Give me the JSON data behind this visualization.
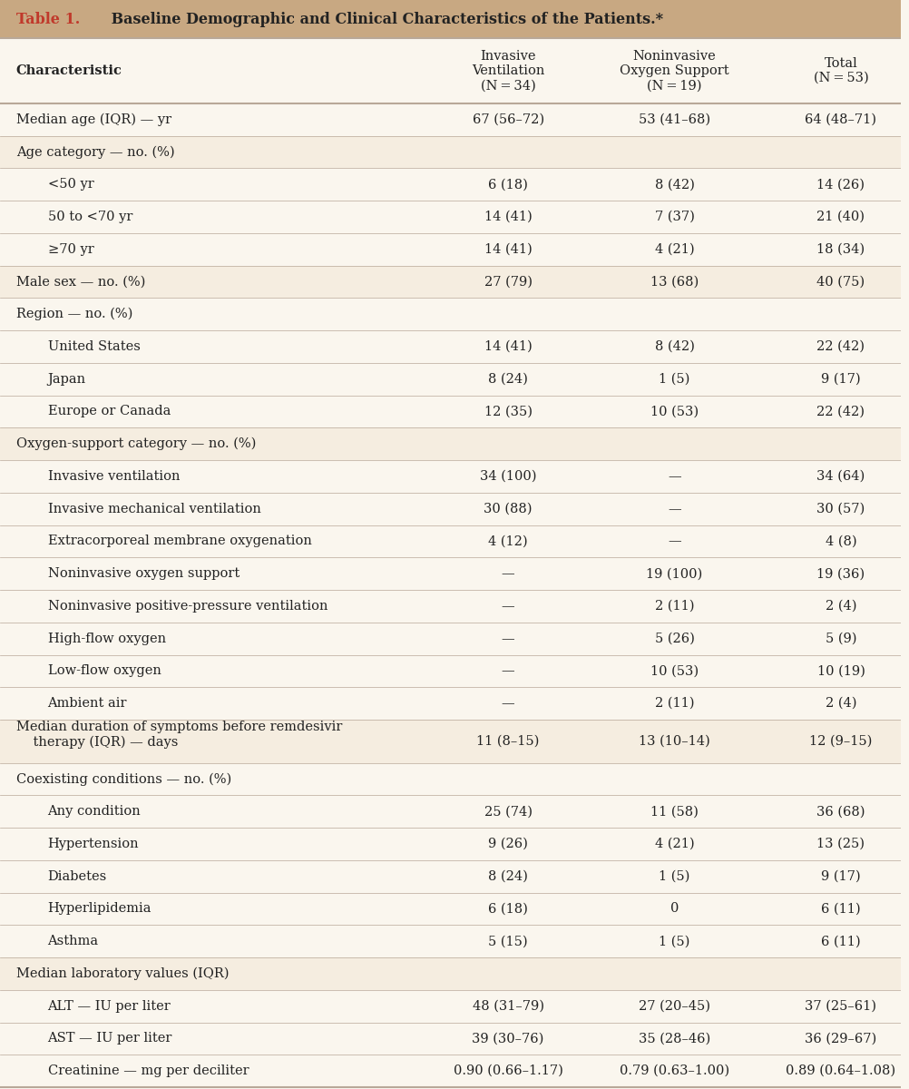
{
  "title_bold": "Table 1.",
  "title_rest": " Baseline Demographic and Clinical Characteristics of the Patients.*",
  "col_headers": [
    [
      "Characteristic",
      "",
      ""
    ],
    [
      "Invasive\nVentilation\n(N = 34)",
      "Noninvasive\nOxygen Support\n(N = 19)",
      "Total\n(N = 53)"
    ]
  ],
  "rows": [
    {
      "label": "Median age (IQR) — yr",
      "indent": 0,
      "values": [
        "67 (56–72)",
        "53 (41–68)",
        "64 (48–71)"
      ],
      "bold": false,
      "shaded": false
    },
    {
      "label": "Age category — no. (%)",
      "indent": 0,
      "values": [
        "",
        "",
        ""
      ],
      "bold": false,
      "shaded": true
    },
    {
      "label": "<50 yr",
      "indent": 1,
      "values": [
        "6 (18)",
        "8 (42)",
        "14 (26)"
      ],
      "bold": false,
      "shaded": false
    },
    {
      "label": "50 to <70 yr",
      "indent": 1,
      "values": [
        "14 (41)",
        "7 (37)",
        "21 (40)"
      ],
      "bold": false,
      "shaded": false
    },
    {
      "label": "≥70 yr",
      "indent": 1,
      "values": [
        "14 (41)",
        "4 (21)",
        "18 (34)"
      ],
      "bold": false,
      "shaded": false
    },
    {
      "label": "Male sex — no. (%)",
      "indent": 0,
      "values": [
        "27 (79)",
        "13 (68)",
        "40 (75)"
      ],
      "bold": false,
      "shaded": true
    },
    {
      "label": "Region — no. (%)",
      "indent": 0,
      "values": [
        "",
        "",
        ""
      ],
      "bold": false,
      "shaded": false
    },
    {
      "label": "United States",
      "indent": 1,
      "values": [
        "14 (41)",
        "8 (42)",
        "22 (42)"
      ],
      "bold": false,
      "shaded": false
    },
    {
      "label": "Japan",
      "indent": 1,
      "values": [
        "8 (24)",
        "1 (5)",
        "9 (17)"
      ],
      "bold": false,
      "shaded": false
    },
    {
      "label": "Europe or Canada",
      "indent": 1,
      "values": [
        "12 (35)",
        "10 (53)",
        "22 (42)"
      ],
      "bold": false,
      "shaded": false
    },
    {
      "label": "Oxygen-support category — no. (%)",
      "indent": 0,
      "values": [
        "",
        "",
        ""
      ],
      "bold": false,
      "shaded": true
    },
    {
      "label": "Invasive ventilation",
      "indent": 1,
      "values": [
        "34 (100)",
        "—",
        "34 (64)"
      ],
      "bold": false,
      "shaded": false
    },
    {
      "label": "Invasive mechanical ventilation",
      "indent": 1,
      "values": [
        "30 (88)",
        "—",
        "30 (57)"
      ],
      "bold": false,
      "shaded": false
    },
    {
      "label": "Extracorporeal membrane oxygenation",
      "indent": 1,
      "values": [
        "4 (12)",
        "—",
        "4 (8)"
      ],
      "bold": false,
      "shaded": false
    },
    {
      "label": "Noninvasive oxygen support",
      "indent": 1,
      "values": [
        "—",
        "19 (100)",
        "19 (36)"
      ],
      "bold": false,
      "shaded": false
    },
    {
      "label": "Noninvasive positive-pressure ventilation",
      "indent": 1,
      "values": [
        "—",
        "2 (11)",
        "2 (4)"
      ],
      "bold": false,
      "shaded": false
    },
    {
      "label": "High-flow oxygen",
      "indent": 1,
      "values": [
        "—",
        "5 (26)",
        "5 (9)"
      ],
      "bold": false,
      "shaded": false
    },
    {
      "label": "Low-flow oxygen",
      "indent": 1,
      "values": [
        "—",
        "10 (53)",
        "10 (19)"
      ],
      "bold": false,
      "shaded": false
    },
    {
      "label": "Ambient air",
      "indent": 1,
      "values": [
        "—",
        "2 (11)",
        "2 (4)"
      ],
      "bold": false,
      "shaded": false
    },
    {
      "label": "Median duration of symptoms before remdesivir\n    therapy (IQR) — days",
      "indent": 0,
      "values": [
        "11 (8–15)",
        "13 (10–14)",
        "12 (9–15)"
      ],
      "bold": false,
      "shaded": true,
      "multiline": true
    },
    {
      "label": "Coexisting conditions — no. (%)",
      "indent": 0,
      "values": [
        "",
        "",
        ""
      ],
      "bold": false,
      "shaded": false
    },
    {
      "label": "Any condition",
      "indent": 1,
      "values": [
        "25 (74)",
        "11 (58)",
        "36 (68)"
      ],
      "bold": false,
      "shaded": false
    },
    {
      "label": "Hypertension",
      "indent": 1,
      "values": [
        "9 (26)",
        "4 (21)",
        "13 (25)"
      ],
      "bold": false,
      "shaded": false
    },
    {
      "label": "Diabetes",
      "indent": 1,
      "values": [
        "8 (24)",
        "1 (5)",
        "9 (17)"
      ],
      "bold": false,
      "shaded": false
    },
    {
      "label": "Hyperlipidemia",
      "indent": 1,
      "values": [
        "6 (18)",
        "0",
        "6 (11)"
      ],
      "bold": false,
      "shaded": false
    },
    {
      "label": "Asthma",
      "indent": 1,
      "values": [
        "5 (15)",
        "1 (5)",
        "6 (11)"
      ],
      "bold": false,
      "shaded": false
    },
    {
      "label": "Median laboratory values (IQR)",
      "indent": 0,
      "values": [
        "",
        "",
        ""
      ],
      "bold": false,
      "shaded": true
    },
    {
      "label": "ALT — IU per liter",
      "indent": 1,
      "values": [
        "48 (31–79)",
        "27 (20–45)",
        "37 (25–61)"
      ],
      "bold": false,
      "shaded": false
    },
    {
      "label": "AST — IU per liter",
      "indent": 1,
      "values": [
        "39 (30–76)",
        "35 (28–46)",
        "36 (29–67)"
      ],
      "bold": false,
      "shaded": false
    },
    {
      "label": "Creatinine — mg per deciliter",
      "indent": 1,
      "values": [
        "0.90 (0.66–1.17)",
        "0.79 (0.63–1.00)",
        "0.89 (0.64–1.08)"
      ],
      "bold": false,
      "shaded": false
    }
  ],
  "bg_color": "#faf6ee",
  "shaded_color": "#f5ede0",
  "header_bg": "#faf6ee",
  "title_bar_color": "#c8a882",
  "title_text_color_bold": "#c0392b",
  "title_text_color_rest": "#222222",
  "border_color": "#b8a898",
  "text_color": "#222222",
  "font_size": 10.5,
  "header_font_size": 10.5,
  "title_font_size": 11.5
}
